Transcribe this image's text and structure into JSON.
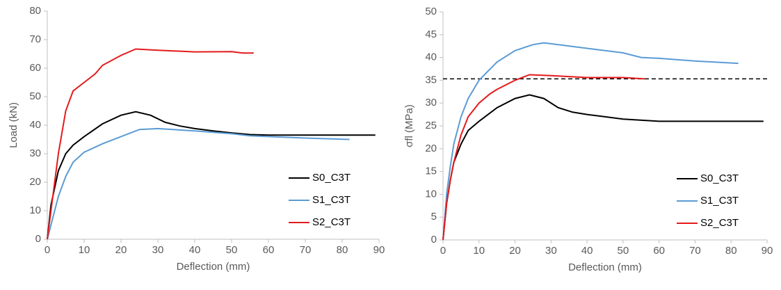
{
  "chart_data": [
    {
      "type": "line",
      "x_label": "Deflection (mm)",
      "y_label": "Load (kN)",
      "xlim": [
        0,
        90
      ],
      "xticks": [
        0,
        10,
        20,
        30,
        40,
        50,
        60,
        70,
        80,
        90
      ],
      "ylim": [
        0,
        80
      ],
      "yticks": [
        0,
        10,
        20,
        30,
        40,
        50,
        60,
        70,
        80
      ],
      "legend": "lower right",
      "series": [
        {
          "name": "S0_C3T",
          "color": "#000000",
          "x": [
            0,
            1,
            2,
            3,
            5,
            7,
            10,
            15,
            20,
            24,
            28,
            32,
            36,
            40,
            45,
            50,
            55,
            60,
            70,
            80,
            89
          ],
          "values": [
            0,
            12,
            18,
            24,
            30,
            33,
            36,
            40.5,
            43.5,
            44.7,
            43.5,
            41,
            39.7,
            38.8,
            38,
            37.3,
            36.7,
            36.5,
            36.5,
            36.5,
            36.5
          ]
        },
        {
          "name": "S1_C3T",
          "color": "#5b9bd5",
          "x": [
            0,
            1,
            2,
            3,
            5,
            7,
            10,
            15,
            20,
            25,
            30,
            40,
            50,
            55,
            60,
            70,
            82
          ],
          "values": [
            0,
            5,
            10,
            15,
            22,
            27,
            30.5,
            33.5,
            36,
            38.5,
            38.8,
            38,
            37,
            36.3,
            36,
            35.5,
            35
          ]
        },
        {
          "name": "S2_C3T",
          "color": "#e41a1c",
          "x": [
            0,
            1,
            2,
            3,
            5,
            7,
            10,
            13,
            15,
            20,
            24,
            30,
            40,
            50,
            53,
            56
          ],
          "values": [
            0,
            10,
            20,
            30,
            45,
            52,
            55,
            58,
            61,
            64.5,
            66.7,
            66.3,
            65.7,
            65.8,
            65.3,
            65.3
          ]
        }
      ]
    },
    {
      "type": "line",
      "x_label": "Deflection (mm)",
      "y_label": "σfl (MPa)",
      "xlim": [
        0,
        90
      ],
      "xticks": [
        0,
        10,
        20,
        30,
        40,
        50,
        60,
        70,
        80,
        90
      ],
      "ylim": [
        0,
        50
      ],
      "yticks": [
        0,
        5,
        10,
        15,
        20,
        25,
        30,
        35,
        40,
        45,
        50
      ],
      "legend": "lower right",
      "reference_line": 35.3,
      "series": [
        {
          "name": "S0_C3T",
          "color": "#000000",
          "x": [
            0,
            1,
            2,
            3,
            5,
            7,
            10,
            15,
            20,
            24,
            28,
            32,
            36,
            40,
            45,
            50,
            56,
            60,
            70,
            80,
            89
          ],
          "values": [
            0,
            8,
            13,
            17,
            21,
            24,
            26,
            29,
            31,
            31.8,
            31,
            29,
            28,
            27.5,
            27,
            26.5,
            26.2,
            26,
            26,
            26,
            26
          ]
        },
        {
          "name": "S1_C3T",
          "color": "#5b9bd5",
          "x": [
            0,
            1,
            2,
            3,
            5,
            7,
            10,
            15,
            20,
            25,
            28,
            30,
            40,
            50,
            55,
            60,
            70,
            82
          ],
          "values": [
            0,
            10,
            16,
            21,
            27,
            31,
            35,
            39,
            41.5,
            42.8,
            43.2,
            43,
            42,
            41,
            40,
            39.8,
            39.2,
            38.7
          ]
        },
        {
          "name": "S2_C3T",
          "color": "#e41a1c",
          "x": [
            0,
            1,
            2,
            3,
            5,
            7,
            10,
            13,
            15,
            20,
            24,
            30,
            40,
            50,
            56
          ],
          "values": [
            0,
            8,
            13,
            17,
            23,
            27,
            30,
            32,
            33,
            35,
            36.2,
            36,
            35.6,
            35.6,
            35.3
          ]
        }
      ]
    }
  ]
}
